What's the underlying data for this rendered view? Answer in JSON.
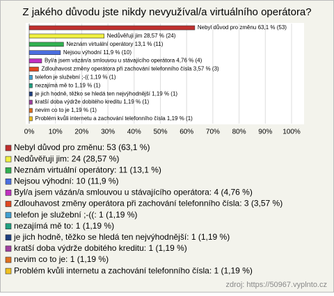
{
  "chart_data": {
    "type": "bar",
    "title": "Z jakého důvodu jste nikdy nevyužíval/a virtuálního operátora?",
    "categories": [
      "Nebyl důvod pro změnu: 53 (63,1 %)",
      "Nedůvěřuji jim: 24 (28,57 %)",
      "Neznám virtuální operátory: 11 (13,1 %)",
      "Nejsou výhodní: 10 (11,9 %)",
      "Byl/a jsem vázán/a smlouvou u stávajícího operátora: 4 (4,76 %)",
      "Zdlouhavost změny operátora při zachování telefonního čísla: 3 (3,57 %)",
      "telefon je služební ;-((: 1 (1,19 %)",
      "nezajímá mě to: 1 (1,19 %)",
      "je jich hodně, těžko se hledá ten nejvýhodnější: 1 (1,19 %)",
      "kratší doba výdrže dobitého kreditu: 1 (1,19 %)",
      "nevim co to je: 1 (1,19 %)",
      "Problém kvůli internetu a zachování telefonního čísla: 1 (1,19 %)"
    ],
    "values": [
      63.1,
      28.57,
      13.1,
      11.9,
      4.76,
      3.57,
      1.19,
      1.19,
      1.19,
      1.19,
      1.19,
      1.19
    ],
    "value_labels": [
      "Nebyl důvod pro změnu 63,1 % (53)",
      "Nedůvěřuji jim 28,57 % (24)",
      "Neznám virtuální operátory 13,1 % (11)",
      "Nejsou výhodní 11,9 % (10)",
      "Byl/a jsem vázán/a smlouvou u stávajícího operátora 4,76 % (4)",
      "Zdlouhavost změny operátora při zachování telefonního čísla 3,57 % (3)",
      "telefon je služební ;-(( 1,19 % (1)",
      "nezajímá mě to 1,19 % (1)",
      "je jich hodně, těžko se hledá ten nejvýhodnější 1,19 % (1)",
      "kratší doba výdrže dobitého kreditu 1,19 % (1)",
      "nevim co to je 1,19 % (1)",
      "Problém kvůli internetu a zachování telefonního čísla 1,19 % (1)"
    ],
    "colors": [
      "#c0302e",
      "#f0f040",
      "#30b050",
      "#4a6ee0",
      "#c030c0",
      "#e04820",
      "#40a0d0",
      "#20a080",
      "#204080",
      "#a040a0",
      "#e07020",
      "#f0c020"
    ],
    "xlim": [
      0,
      100
    ],
    "xticks": [
      {
        "value": 0,
        "label": "0%"
      },
      {
        "value": 10,
        "label": "10%"
      },
      {
        "value": 20,
        "label": "20%"
      },
      {
        "value": 30,
        "label": "30%"
      },
      {
        "value": 40,
        "label": "40%"
      },
      {
        "value": 50,
        "label": "50%"
      },
      {
        "value": 60,
        "label": "60%"
      },
      {
        "value": 70,
        "label": "70%"
      },
      {
        "value": 80,
        "label": "80%"
      },
      {
        "value": 90,
        "label": "90%"
      },
      {
        "value": 100,
        "label": "100%"
      }
    ],
    "grid": true,
    "source": "zdroj: https://50967.vyplnto.cz"
  }
}
